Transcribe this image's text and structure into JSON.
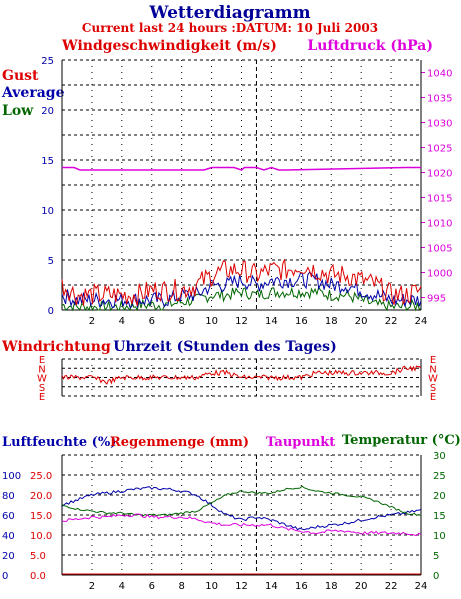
{
  "title": "Wetterdiagramm",
  "subtitle": "Current last 24 hours :DATUM: 10 Juli 2003",
  "colors": {
    "red": "#dd0000",
    "blue": "#0000aa",
    "green": "#006600",
    "magenta": "#dd00dd",
    "navy": "#000099"
  },
  "chart_data": [
    {
      "type": "line",
      "panel": "wind",
      "left_title": "Windgeschwindigkeit (m/s)",
      "right_title": "Luftdruck (hPa)",
      "legend": [
        "Gust",
        "Average",
        "Low"
      ],
      "x_ticks": [
        2,
        4,
        6,
        8,
        10,
        12,
        14,
        16,
        18,
        20,
        22,
        24
      ],
      "xlim": [
        0,
        24
      ],
      "y_left_ticks": [
        0,
        5,
        10,
        15,
        20,
        25
      ],
      "ylim_left": [
        0,
        25
      ],
      "y_right_ticks": [
        995,
        1000,
        1005,
        1010,
        1015,
        1020,
        1025,
        1030,
        1035,
        1040
      ],
      "ylim_right": [
        992.5,
        1042.5
      ],
      "grid": true,
      "series": [
        {
          "name": "Gust",
          "axis": "left",
          "color": "#dd0000",
          "x": [
            0,
            1,
            2,
            3,
            4,
            5,
            6,
            7,
            8,
            9,
            10,
            11,
            12,
            13,
            14,
            15,
            16,
            17,
            18,
            19,
            20,
            21,
            22,
            23,
            24
          ],
          "values": [
            2.5,
            1.5,
            1.5,
            1.5,
            1.5,
            1.5,
            2,
            2,
            2,
            2.5,
            3.5,
            4,
            4,
            3.5,
            4,
            4,
            4.5,
            4,
            3.5,
            3.5,
            3,
            2.5,
            1.5,
            1.5,
            2
          ]
        },
        {
          "name": "Average",
          "axis": "left",
          "color": "#0000aa",
          "x": [
            0,
            1,
            2,
            3,
            4,
            5,
            6,
            7,
            8,
            9,
            10,
            11,
            12,
            13,
            14,
            15,
            16,
            17,
            18,
            19,
            20,
            21,
            22,
            23,
            24
          ],
          "values": [
            1.5,
            1,
            1,
            1,
            1,
            1,
            1,
            1,
            1.5,
            1.5,
            2.5,
            2.5,
            3,
            2.5,
            3,
            3,
            3,
            3,
            2.5,
            2.5,
            2,
            1.5,
            1,
            1,
            1
          ]
        },
        {
          "name": "Low",
          "axis": "left",
          "color": "#006600",
          "x": [
            0,
            1,
            2,
            3,
            4,
            5,
            6,
            7,
            8,
            9,
            10,
            11,
            12,
            13,
            14,
            15,
            16,
            17,
            18,
            19,
            20,
            21,
            22,
            23,
            24
          ],
          "values": [
            0.5,
            0.3,
            0.3,
            0.3,
            0.3,
            0.5,
            0.5,
            0.5,
            0.8,
            1,
            1.5,
            1.5,
            1.8,
            1.5,
            1.8,
            1.8,
            1.8,
            1.8,
            1.5,
            1.5,
            1,
            0.5,
            0.3,
            0.3,
            0.5
          ]
        },
        {
          "name": "Luftdruck",
          "axis": "right",
          "color": "#dd00dd",
          "x": [
            0,
            0.8,
            1.2,
            9.5,
            10,
            11.5,
            12,
            12.2,
            13,
            13.5,
            14,
            14.5,
            15,
            23,
            24
          ],
          "values": [
            1021,
            1021,
            1020.5,
            1020.5,
            1021,
            1021,
            1020.5,
            1021,
            1021,
            1020.5,
            1021,
            1020.5,
            1020.5,
            1021,
            1021
          ]
        }
      ]
    },
    {
      "type": "line",
      "panel": "direction",
      "left_title": "Windrichtung",
      "center_title": "Uhrzeit (Stunden des Tages)",
      "y_ticks": [
        "E",
        "N",
        "W",
        "S",
        "E"
      ],
      "xlim": [
        0,
        24
      ],
      "grid": true,
      "series": [
        {
          "name": "Windrichtung",
          "color": "#dd0000",
          "x": [
            0,
            1,
            2,
            3,
            4,
            5,
            6,
            7,
            8,
            9,
            10,
            11,
            12,
            13,
            14,
            15,
            16,
            17,
            18,
            19,
            20,
            21,
            22,
            23,
            24
          ],
          "values": [
            "W",
            "W",
            "W",
            "SW",
            "W",
            "W",
            "W",
            "W",
            "W",
            "W",
            "NW",
            "NW",
            "W",
            "W",
            "W",
            "W",
            "W",
            "NW",
            "NW",
            "NW",
            "NW",
            "NW",
            "NW",
            "N",
            "N"
          ]
        }
      ]
    },
    {
      "type": "line",
      "panel": "humidity",
      "titles": [
        "Luftfeuchte (%)",
        "Regenmenge (mm)",
        "Taupunkt",
        "Temperatur (°C)"
      ],
      "x_ticks": [
        2,
        4,
        6,
        8,
        10,
        12,
        14,
        16,
        18,
        20,
        22,
        24
      ],
      "xlim": [
        0,
        24
      ],
      "y_humidity_ticks": [
        0,
        20,
        40,
        60,
        80,
        100
      ],
      "y_rain_ticks": [
        "0.0",
        "5.0",
        "10.0",
        "15.0",
        "20.0",
        "25.0"
      ],
      "y_right_ticks": [
        0,
        5,
        10,
        15,
        20,
        25,
        30
      ],
      "ylim_right": [
        0,
        30
      ],
      "grid": true,
      "series": [
        {
          "name": "Luftfeuchte",
          "axis": "humidity",
          "color": "#0000aa",
          "x": [
            0,
            1,
            2,
            3,
            4,
            5,
            6,
            7,
            8,
            9,
            10,
            11,
            12,
            13,
            14,
            15,
            16,
            17,
            18,
            19,
            20,
            21,
            22,
            23,
            24
          ],
          "values": [
            70,
            75,
            80,
            82,
            84,
            86,
            87,
            86,
            84,
            80,
            70,
            60,
            55,
            58,
            55,
            50,
            45,
            48,
            50,
            52,
            55,
            58,
            60,
            62,
            65
          ]
        },
        {
          "name": "Temperatur",
          "axis": "right",
          "color": "#006600",
          "x": [
            0,
            1,
            2,
            3,
            4,
            5,
            6,
            7,
            8,
            9,
            10,
            11,
            12,
            13,
            14,
            15,
            16,
            17,
            18,
            19,
            20,
            21,
            22,
            23,
            24
          ],
          "values": [
            17.5,
            16.5,
            16,
            15.5,
            15.5,
            15,
            15,
            15,
            15.5,
            16,
            18,
            20,
            21,
            20.5,
            20.5,
            21.5,
            22,
            21,
            20.5,
            20,
            19.5,
            18.5,
            17,
            15.5,
            15
          ]
        },
        {
          "name": "Taupunkt",
          "axis": "right",
          "color": "#dd00dd",
          "x": [
            0,
            1,
            2,
            3,
            4,
            5,
            6,
            7,
            8,
            9,
            10,
            11,
            12,
            13,
            14,
            15,
            16,
            17,
            18,
            19,
            20,
            21,
            22,
            23,
            24
          ],
          "values": [
            13.5,
            14,
            14.5,
            14.5,
            15,
            15,
            14.5,
            14.5,
            14.5,
            14,
            13,
            12.5,
            12.5,
            12.5,
            12.5,
            11.5,
            11,
            10.5,
            11,
            11,
            10.5,
            10.5,
            10.5,
            10.5,
            10
          ]
        },
        {
          "name": "Regenmenge",
          "axis": "rain",
          "color": "#dd0000",
          "x": [
            0,
            24
          ],
          "values": [
            0,
            0
          ]
        }
      ]
    }
  ]
}
